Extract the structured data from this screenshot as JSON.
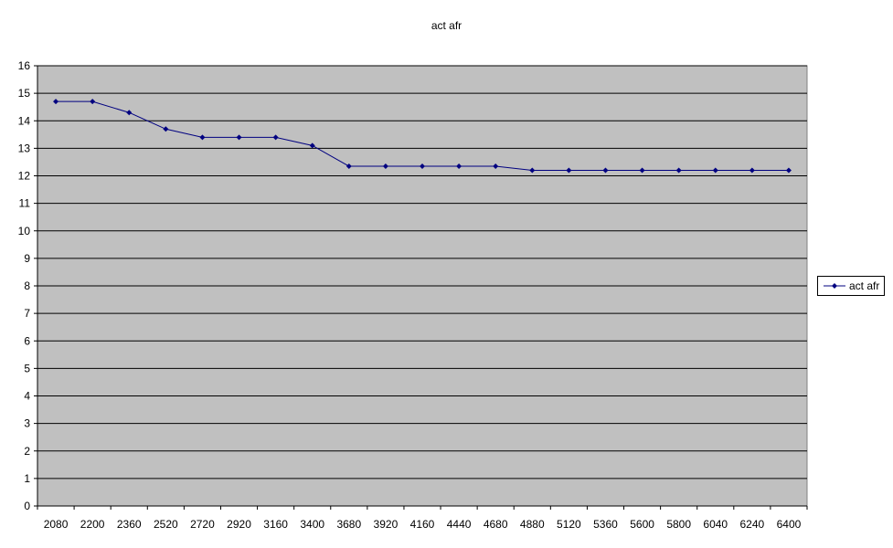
{
  "chart_data": {
    "type": "line",
    "title": "act afr",
    "xlabel": "",
    "ylabel": "",
    "categories": [
      "2080",
      "2200",
      "2360",
      "2520",
      "2720",
      "2920",
      "3160",
      "3400",
      "3680",
      "3920",
      "4160",
      "4440",
      "4680",
      "4880",
      "5120",
      "5360",
      "5600",
      "5800",
      "6040",
      "6240",
      "6400"
    ],
    "series": [
      {
        "name": "act afr",
        "values": [
          14.7,
          14.7,
          14.3,
          13.7,
          13.4,
          13.4,
          13.4,
          13.1,
          12.35,
          12.35,
          12.35,
          12.35,
          12.35,
          12.2,
          12.2,
          12.2,
          12.2,
          12.2,
          12.2,
          12.2,
          12.2
        ]
      }
    ],
    "ylim": [
      0,
      16
    ],
    "ytick_step": 1,
    "grid": true,
    "legend": "right",
    "colors": {
      "plot_background": "#c0c0c0",
      "series_line": "#000080",
      "gridline": "#000000"
    }
  }
}
